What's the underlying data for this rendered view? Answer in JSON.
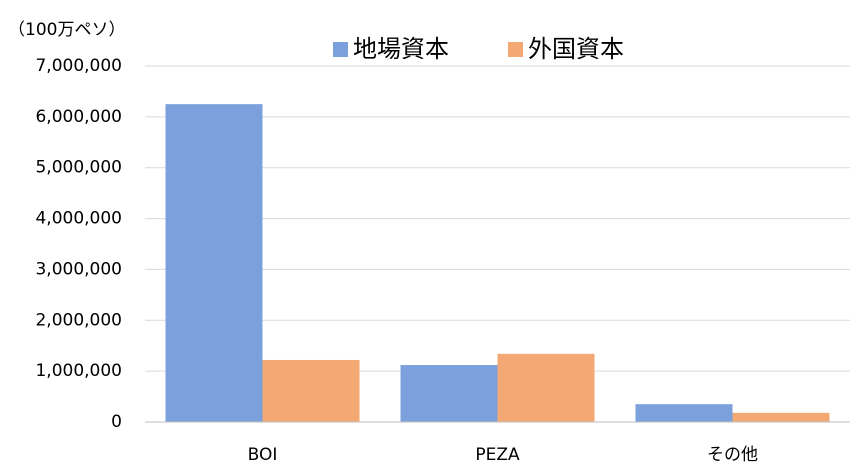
{
  "chart_data": {
    "type": "bar",
    "y_unit": "（100万ペソ）",
    "categories": [
      "BOI",
      "PEZA",
      "その他"
    ],
    "series": [
      {
        "name": "地場資本",
        "color": "#7ba0db",
        "values": [
          6250000,
          1120000,
          350000
        ]
      },
      {
        "name": "外国資本",
        "color": "#f4a873",
        "values": [
          1220000,
          1340000,
          180000
        ]
      }
    ],
    "ylim": [
      0,
      7000000
    ],
    "yticks": [
      0,
      {
        "value": 1000000,
        "label": "1,000,000"
      },
      {
        "value": 2000000,
        "label": "2,000,000"
      },
      {
        "value": 3000000,
        "label": "3,000,000"
      },
      {
        "value": 4000000,
        "label": "4,000,000"
      },
      {
        "value": 5000000,
        "label": "5,000,000"
      },
      {
        "value": 6000000,
        "label": "6,000,000"
      },
      {
        "value": 7000000,
        "label": "7,000,000"
      }
    ],
    "grid": true,
    "legend": "top"
  }
}
